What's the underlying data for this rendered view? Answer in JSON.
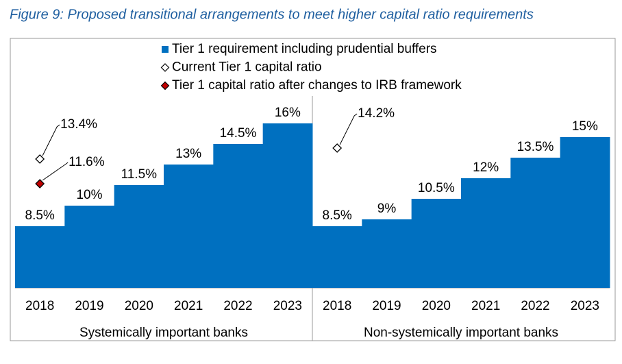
{
  "chart_data": {
    "type": "bar",
    "title": "Figure 9: Proposed transitional arrangements to meet higher capital ratio requirements",
    "ylim": [
      4,
      18
    ],
    "series": [
      {
        "name": "Tier 1 requirement including prudential buffers",
        "color": "#0070c0",
        "marker": "bar"
      },
      {
        "name": "Current Tier 1 capital ratio",
        "color": "#ffffff",
        "marker": "diamond"
      },
      {
        "name": "Tier 1 capital ratio after changes to IRB framework",
        "color": "#c00000",
        "marker": "diamond"
      }
    ],
    "panels": [
      {
        "label": "Systemically important banks",
        "categories": [
          "2018",
          "2019",
          "2020",
          "2021",
          "2022",
          "2023"
        ],
        "values": [
          [
            8.5,
            10,
            11.5,
            13,
            14.5,
            16
          ],
          [
            13.4,
            null,
            null,
            null,
            null,
            null
          ],
          [
            11.6,
            null,
            null,
            null,
            null,
            null
          ]
        ],
        "value_labels": [
          [
            "8.5%",
            "10%",
            "11.5%",
            "13%",
            "14.5%",
            "16%"
          ],
          [
            "13.4%",
            null,
            null,
            null,
            null,
            null
          ],
          [
            "11.6%",
            null,
            null,
            null,
            null,
            null
          ]
        ]
      },
      {
        "label": "Non-systemically important banks",
        "categories": [
          "2018",
          "2019",
          "2020",
          "2021",
          "2022",
          "2023"
        ],
        "values": [
          [
            8.5,
            9,
            10.5,
            12,
            13.5,
            15
          ],
          [
            14.2,
            null,
            null,
            null,
            null,
            null
          ],
          [
            null,
            null,
            null,
            null,
            null,
            null
          ]
        ],
        "value_labels": [
          [
            "8.5%",
            "9%",
            "10.5%",
            "12%",
            "13.5%",
            "15%"
          ],
          [
            "14.2%",
            null,
            null,
            null,
            null,
            null
          ],
          [
            null,
            null,
            null,
            null,
            null,
            null
          ]
        ]
      }
    ]
  }
}
